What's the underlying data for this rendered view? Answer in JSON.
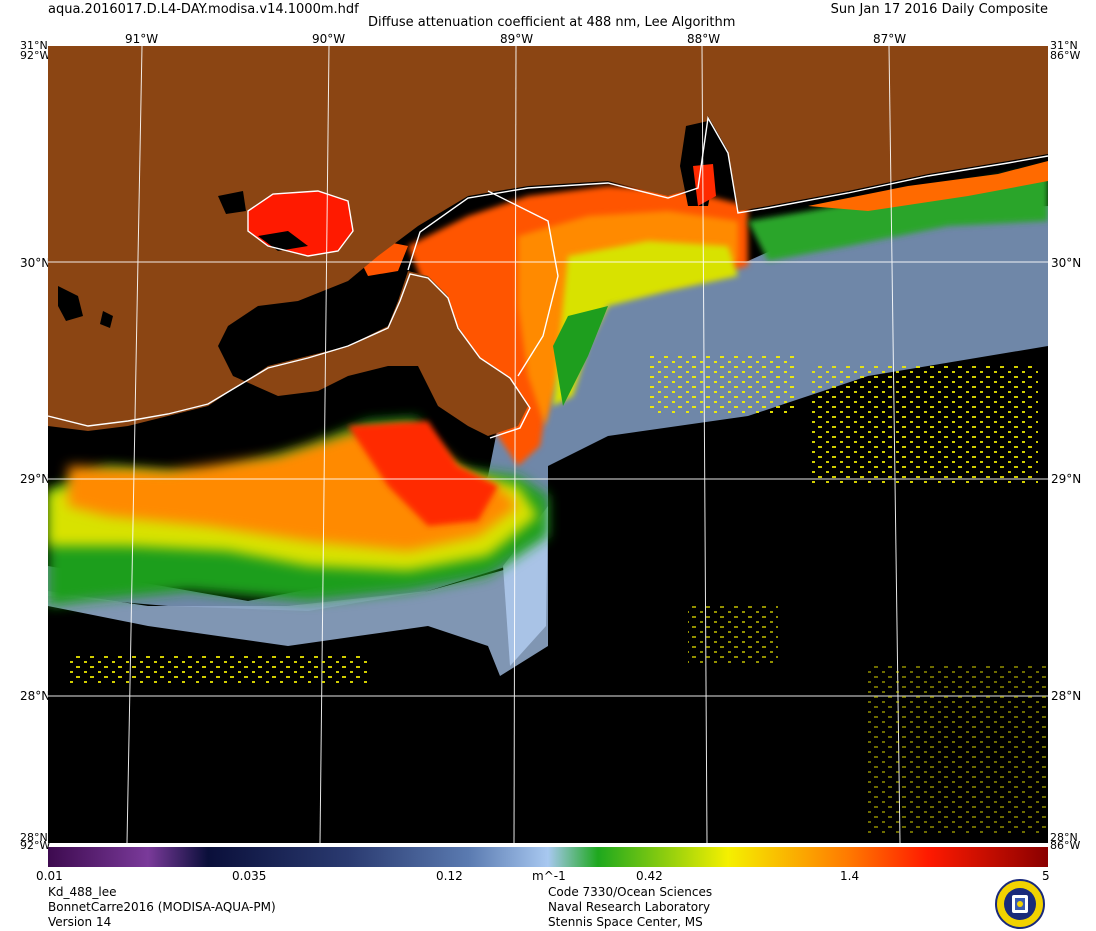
{
  "header": {
    "filename": "aqua.2016017.D.L4-DAY.modisa.v14.1000m.hdf",
    "title": "Diffuse attenuation coefficient at 488 nm, Lee Algorithm",
    "date": "Sun Jan 17 2016 Daily Composite"
  },
  "map": {
    "lat_labels": [
      "31°N",
      "30°N",
      "29°N",
      "28°N"
    ],
    "lon_labels": [
      "91°W",
      "90°W",
      "89°W",
      "88°W",
      "87°W"
    ],
    "corner_labels": {
      "top_left_lat": "31°N",
      "top_left_lon": "92°W",
      "top_right_lat": "31°N",
      "top_right_lon": "86°W",
      "bottom_left_lat": "28°N",
      "bottom_left_lon": "92°W",
      "bottom_right_lat": "28°N",
      "bottom_right_lon": "86°W"
    },
    "land_color": "#8B4513",
    "no_data_color": "#000000"
  },
  "colorbar": {
    "tick_labels": [
      "0.01",
      "0.035",
      "0.12",
      "m^-1",
      "0.42",
      "1.4",
      "5"
    ],
    "colors": [
      "#3d0a4f",
      "#7a3a9a",
      "#0a0f3a",
      "#2a3a70",
      "#5a7ab0",
      "#a8c8f0",
      "#1ea81e",
      "#f5f000",
      "#ff7a00",
      "#ff1a00",
      "#8a0000"
    ]
  },
  "footer": {
    "left": [
      "Kd_488_lee",
      "BonnetCarre2016 (MODISA-AQUA-PM)",
      "Version 14"
    ],
    "center": [
      "Code 7330/Ocean Sciences",
      "Naval Research Laboratory",
      "Stennis Space Center, MS"
    ]
  }
}
